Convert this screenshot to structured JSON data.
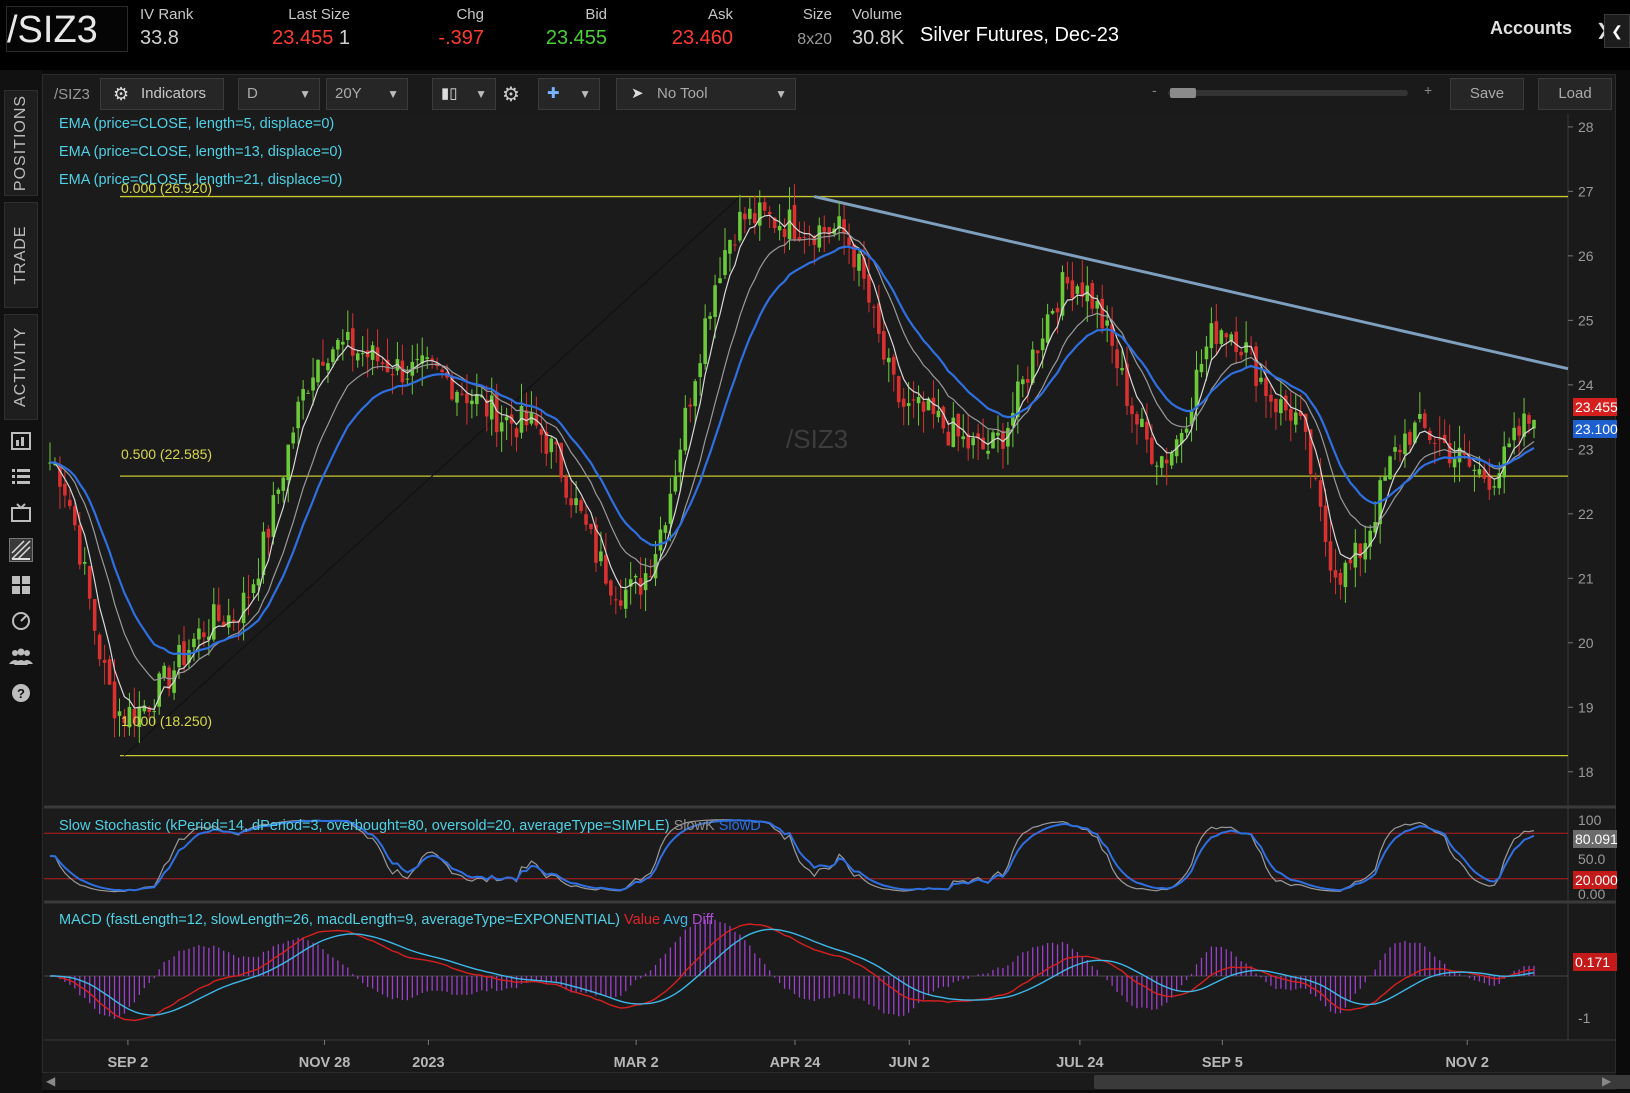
{
  "header": {
    "symbol": "/SIZ3",
    "iv_rank": {
      "label": "IV Rank",
      "value": "33.8"
    },
    "last_size": {
      "label": "Last Size",
      "value": "23.455",
      "size": "1"
    },
    "chg": {
      "label": "Chg",
      "value": "-.397"
    },
    "bid": {
      "label": "Bid",
      "value": "23.455"
    },
    "ask": {
      "label": "Ask",
      "value": "23.460"
    },
    "size": {
      "label": "Size",
      "value": "8x20"
    },
    "volume": {
      "label": "Volume",
      "value": "30.8K"
    },
    "description": "Silver Futures, Dec-23",
    "accounts_label": "Accounts",
    "colors": {
      "up": "#4cd137",
      "down": "#ff3b30",
      "neutral": "#c8c8c8"
    }
  },
  "rail": {
    "tabs": [
      "POSITIONS",
      "TRADE",
      "ACTIVITY"
    ],
    "icons": [
      "chart-bars-icon",
      "list-icon",
      "tv-icon",
      "drawing-icon",
      "grid-icon",
      "gauge-icon",
      "people-icon",
      "help-icon"
    ]
  },
  "toolbar": {
    "symbol": "/SIZ3",
    "indicators_label": "Indicators",
    "aggregation": "D",
    "time_frame": "20Y",
    "drawing_tool": "No Tool",
    "zoom_minus": "-",
    "zoom_plus": "+",
    "save_label": "Save",
    "load_label": "Load"
  },
  "studies": {
    "ema5": "EMA (price=CLOSE, length=5, displace=0)",
    "ema13": "EMA (price=CLOSE, length=13, displace=0)",
    "ema21": "EMA (price=CLOSE, length=21, displace=0)",
    "stoch": "Slow Stochastic (kPeriod=14, dPeriod=3, overbought=80, oversold=20, averageType=SIMPLE)",
    "stoch_k": "SlowK",
    "stoch_d": "SlowD",
    "macd": "MACD (fastLength=12, slowLength=26, macdLength=9, averageType=EXPONENTIAL)",
    "macd_value": "Value",
    "macd_avg": "Avg",
    "macd_diff": "Diff"
  },
  "watermark": "/SIZ3",
  "fib_levels": [
    {
      "label": "0.000 (26.920)",
      "price": 26.92
    },
    {
      "label": "0.500 (22.585)",
      "price": 22.585
    },
    {
      "label": "1.000 (18.250)",
      "price": 18.25
    }
  ],
  "price_tags": {
    "last": "23.455",
    "ema": "23.100"
  },
  "stoch_tags": {
    "value": "80.091",
    "oversold": "20.000"
  },
  "stoch_axis": [
    "100",
    "50.0",
    "0.00"
  ],
  "macd_tags": {
    "value": "0.171"
  },
  "macd_axis": [
    "-1"
  ],
  "chart_data": {
    "type": "candlestick",
    "symbol": "/SIZ3",
    "y_axis_ticks": [
      "28",
      "27",
      "26",
      "25",
      "24",
      "23",
      "22",
      "21",
      "20",
      "19",
      "18"
    ],
    "ylim": [
      17.5,
      28.2
    ],
    "x_axis_labels": [
      "SEP 2",
      "NOV 28",
      "2023",
      "MAR 2",
      "APR 24",
      "JUN 2",
      "JUL 24",
      "SEP 5",
      "NOV 2"
    ],
    "x_axis_label_positions": [
      0.0525,
      0.185,
      0.255,
      0.395,
      0.502,
      0.579,
      0.694,
      0.79,
      0.955
    ],
    "key_points": [
      {
        "t": 0.0,
        "close": 22.8
      },
      {
        "t": 0.05,
        "close": 18.9
      },
      {
        "t": 0.12,
        "close": 20.4
      },
      {
        "t": 0.19,
        "close": 24.6
      },
      {
        "t": 0.25,
        "close": 24.2
      },
      {
        "t": 0.32,
        "close": 23.4
      },
      {
        "t": 0.39,
        "close": 20.8
      },
      {
        "t": 0.47,
        "close": 26.6
      },
      {
        "t": 0.53,
        "close": 26.4
      },
      {
        "t": 0.58,
        "close": 23.6
      },
      {
        "t": 0.63,
        "close": 23.0
      },
      {
        "t": 0.69,
        "close": 25.6
      },
      {
        "t": 0.75,
        "close": 22.9
      },
      {
        "t": 0.79,
        "close": 24.9
      },
      {
        "t": 0.835,
        "close": 23.6
      },
      {
        "t": 0.87,
        "close": 21.1
      },
      {
        "t": 0.92,
        "close": 23.3
      },
      {
        "t": 0.97,
        "close": 22.6
      },
      {
        "t": 1.0,
        "close": 23.455
      }
    ],
    "trendline": {
      "from_price": 26.92,
      "to_price": 24.25
    },
    "support_line": {
      "price": 18.25
    }
  }
}
